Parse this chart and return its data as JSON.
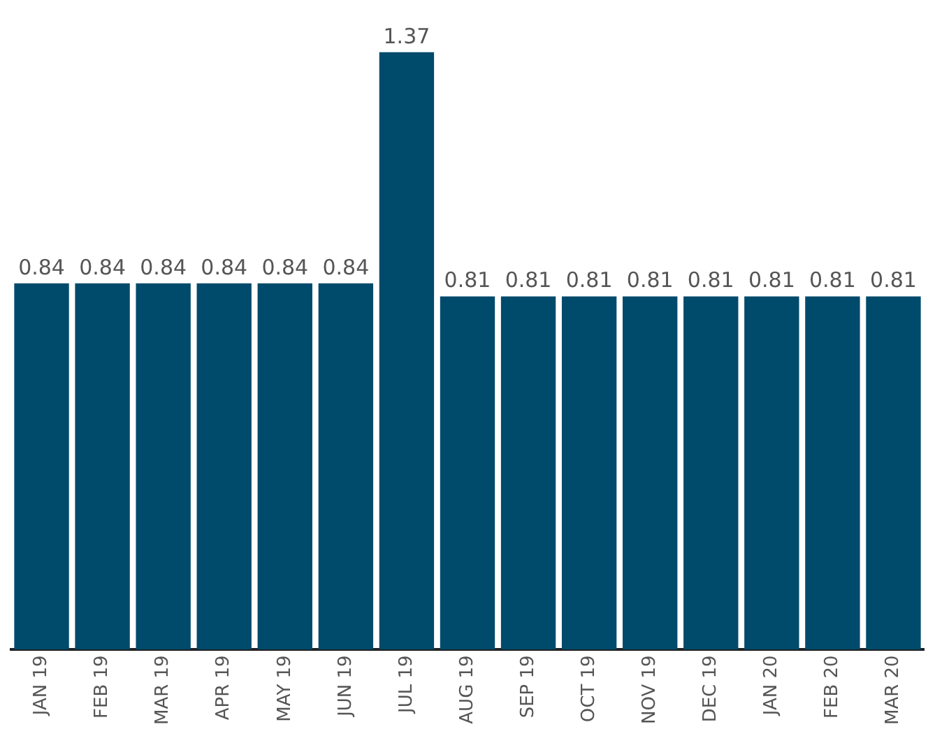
{
  "chart_data": {
    "type": "bar",
    "categories": [
      "JAN 19",
      "FEB 19",
      "MAR 19",
      "APR 19",
      "MAY 19",
      "JUN 19",
      "JUL 19",
      "AUG 19",
      "SEP 19",
      "OCT 19",
      "NOV 19",
      "DEC 19",
      "JAN 20",
      "FEB 20",
      "MAR 20"
    ],
    "values": [
      0.84,
      0.84,
      0.84,
      0.84,
      0.84,
      0.84,
      1.37,
      0.81,
      0.81,
      0.81,
      0.81,
      0.81,
      0.81,
      0.81,
      0.81
    ],
    "color": "#004a6b",
    "data_labels": true,
    "grid": false,
    "legend": false,
    "tick_labels": "x"
  }
}
